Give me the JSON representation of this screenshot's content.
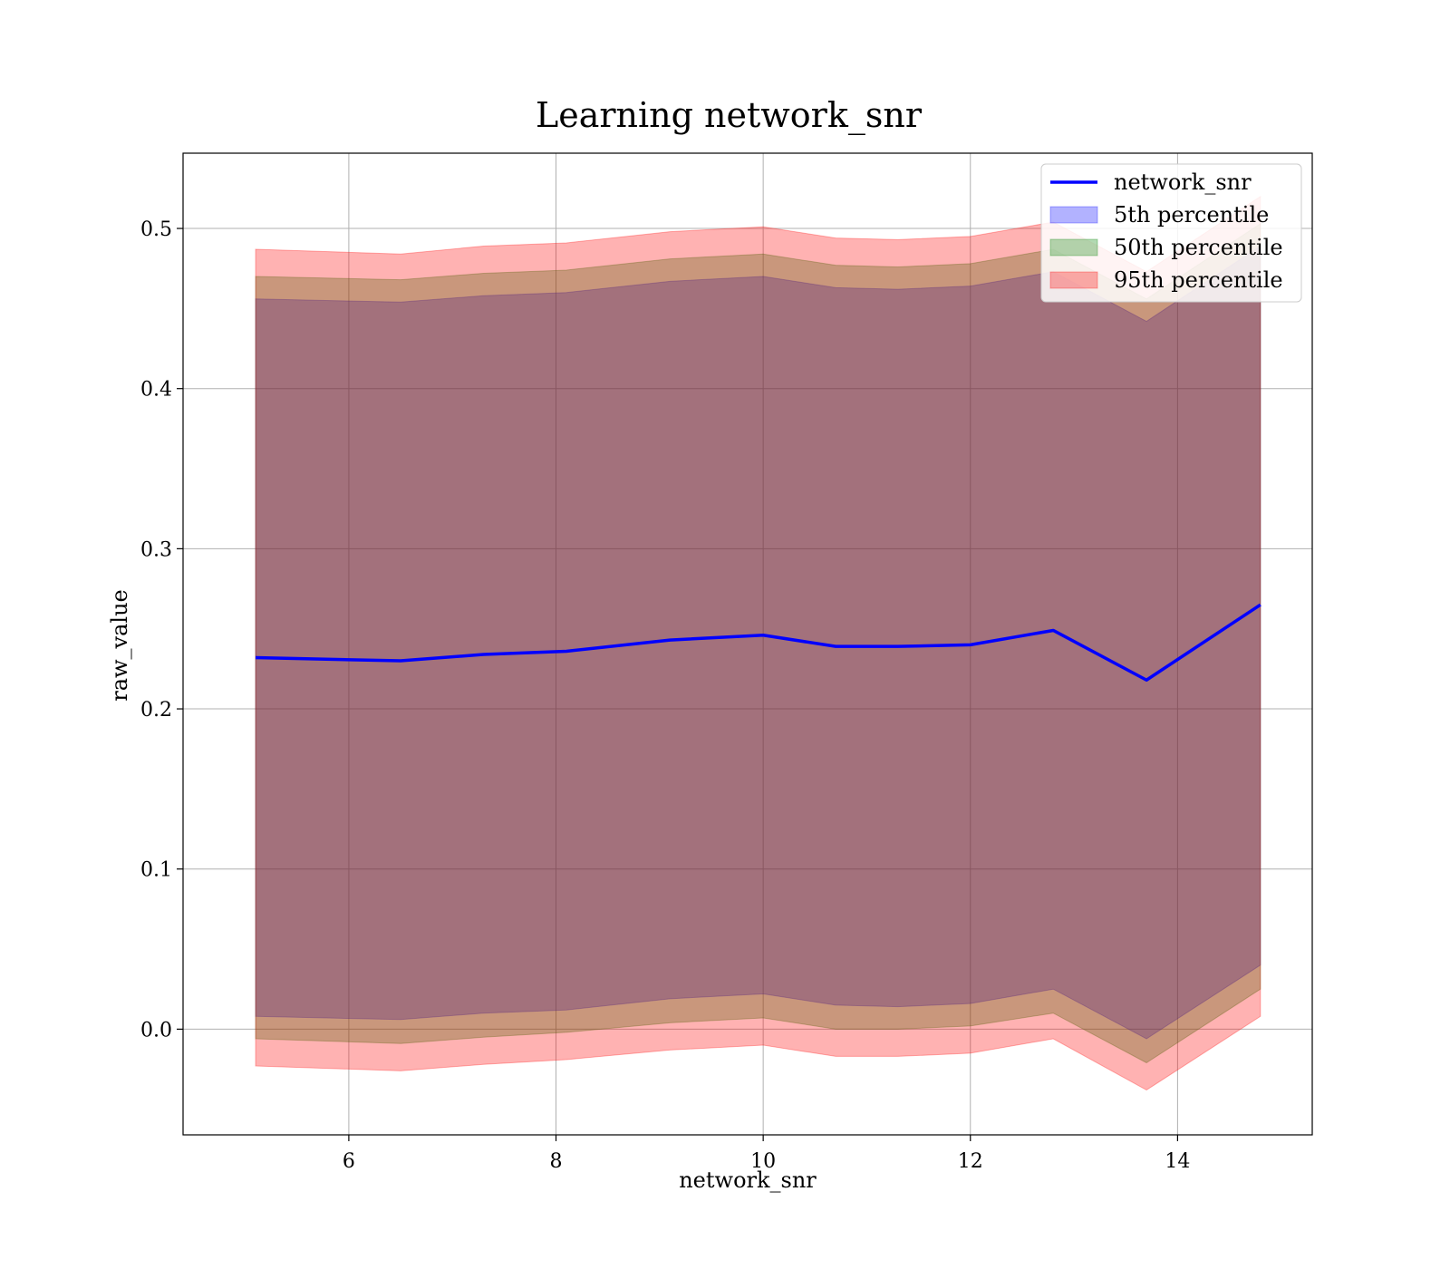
{
  "chart_data": {
    "type": "area",
    "title": "Learning network_snr",
    "xlabel": "network_snr",
    "ylabel": "raw_value",
    "xlim": [
      4.4,
      15.3
    ],
    "ylim": [
      -0.066,
      0.547
    ],
    "xticks": [
      6,
      8,
      10,
      12,
      14
    ],
    "yticks": [
      0.0,
      0.1,
      0.2,
      0.3,
      0.4,
      0.5
    ],
    "xtick_labels": [
      "6",
      "8",
      "10",
      "12",
      "14"
    ],
    "ytick_labels": [
      "0.0",
      "0.1",
      "0.2",
      "0.3",
      "0.4",
      "0.5"
    ],
    "grid": true,
    "legend_position": "top-right",
    "x": [
      5.1,
      6.5,
      7.3,
      8.1,
      9.1,
      10.0,
      10.7,
      11.3,
      12.0,
      12.8,
      13.7,
      14.8
    ],
    "series": [
      {
        "name": "network_snr",
        "kind": "line",
        "color": "#0000ff",
        "values": [
          0.232,
          0.23,
          0.234,
          0.236,
          0.243,
          0.246,
          0.239,
          0.239,
          0.24,
          0.249,
          0.218,
          0.265
        ]
      },
      {
        "name": "5th percentile",
        "kind": "band",
        "color": "#0000ff",
        "lower": [
          0.008,
          0.006,
          0.01,
          0.012,
          0.019,
          0.022,
          0.015,
          0.014,
          0.016,
          0.025,
          -0.006,
          0.04
        ],
        "upper": [
          0.456,
          0.454,
          0.458,
          0.46,
          0.467,
          0.47,
          0.463,
          0.462,
          0.464,
          0.473,
          0.442,
          0.489
        ]
      },
      {
        "name": "50th percentile",
        "kind": "band",
        "color": "#008000",
        "lower": [
          -0.006,
          -0.009,
          -0.005,
          -0.002,
          0.004,
          0.007,
          0.0,
          0.0,
          0.002,
          0.01,
          -0.021,
          0.025
        ],
        "upper": [
          0.47,
          0.468,
          0.472,
          0.474,
          0.481,
          0.484,
          0.477,
          0.476,
          0.478,
          0.487,
          0.456,
          0.503
        ]
      },
      {
        "name": "95th percentile",
        "kind": "band",
        "color": "#ff0000",
        "lower": [
          -0.023,
          -0.026,
          -0.022,
          -0.019,
          -0.013,
          -0.01,
          -0.017,
          -0.017,
          -0.015,
          -0.006,
          -0.038,
          0.008
        ],
        "upper": [
          0.487,
          0.484,
          0.489,
          0.491,
          0.498,
          0.501,
          0.494,
          0.493,
          0.495,
          0.504,
          0.473,
          0.52
        ]
      }
    ],
    "band_alpha": 0.3
  }
}
